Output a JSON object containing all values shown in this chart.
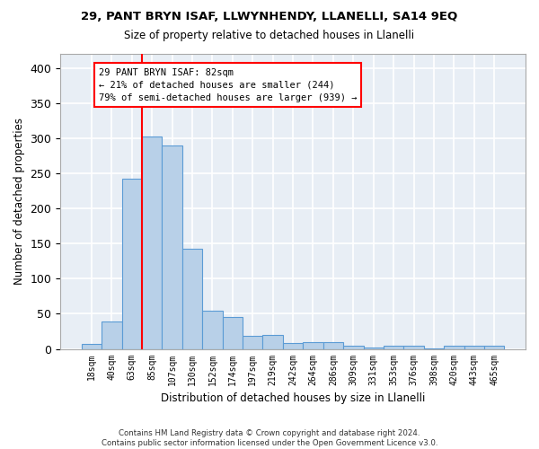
{
  "title1": "29, PANT BRYN ISAF, LLWYNHENDY, LLANELLI, SA14 9EQ",
  "title2": "Size of property relative to detached houses in Llanelli",
  "xlabel": "Distribution of detached houses by size in Llanelli",
  "ylabel": "Number of detached properties",
  "footer": "Contains HM Land Registry data © Crown copyright and database right 2024.\nContains public sector information licensed under the Open Government Licence v3.0.",
  "bar_labels": [
    "18sqm",
    "40sqm",
    "63sqm",
    "85sqm",
    "107sqm",
    "130sqm",
    "152sqm",
    "174sqm",
    "197sqm",
    "219sqm",
    "242sqm",
    "264sqm",
    "286sqm",
    "309sqm",
    "331sqm",
    "353sqm",
    "376sqm",
    "398sqm",
    "420sqm",
    "443sqm",
    "465sqm"
  ],
  "bar_values": [
    7,
    39,
    242,
    302,
    290,
    143,
    55,
    45,
    18,
    20,
    9,
    10,
    10,
    5,
    2,
    4,
    4,
    1,
    4,
    5,
    5
  ],
  "bar_color": "#b8d0e8",
  "bar_edge_color": "#5b9bd5",
  "bg_color": "#e8eef5",
  "grid_color": "#ffffff",
  "annotation_text": "29 PANT BRYN ISAF: 82sqm\n← 21% of detached houses are smaller (244)\n79% of semi-detached houses are larger (939) →",
  "ylim_max": 420,
  "yticks": [
    0,
    50,
    100,
    150,
    200,
    250,
    300,
    350,
    400
  ],
  "red_line_x": 2.5
}
